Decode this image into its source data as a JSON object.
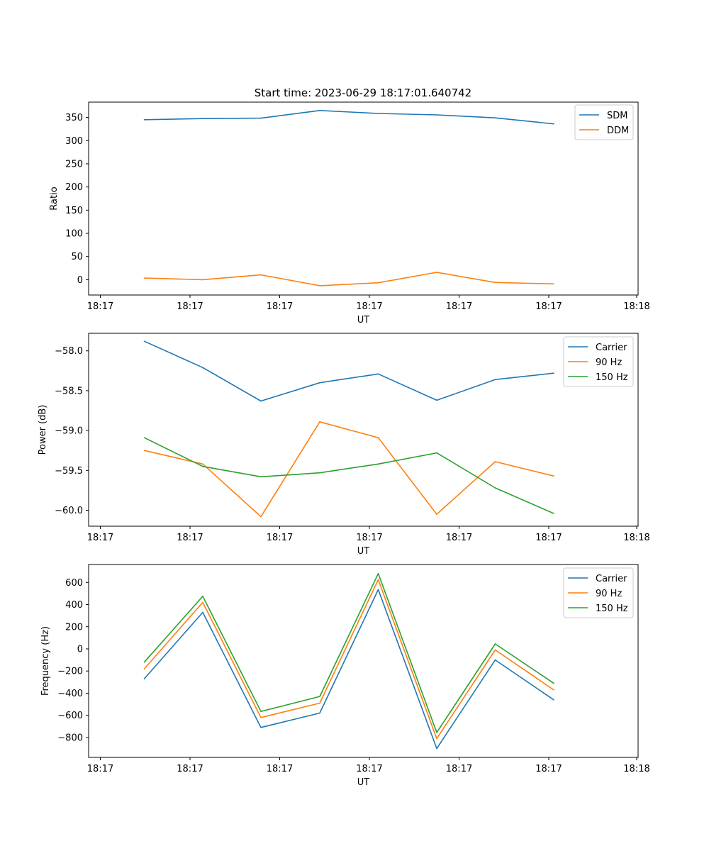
{
  "figure_title": "Start time: 2023-06-29 18:17:01.640742",
  "colors": {
    "blue": "#1f77b4",
    "orange": "#ff7f0e",
    "green": "#2ca02c"
  },
  "chart_data": [
    {
      "type": "line",
      "title": "Start time: 2023-06-29 18:17:01.640742",
      "xlabel": "UT",
      "ylabel": "Ratio",
      "x_ticks": [
        "18:17",
        "18:17",
        "18:17",
        "18:17",
        "18:17",
        "18:17",
        "18:18"
      ],
      "ylim": [
        -33,
        383
      ],
      "y_ticks": [
        0,
        50,
        100,
        150,
        200,
        250,
        300,
        350
      ],
      "legend": "top-right",
      "grid": false,
      "x_points": [
        1,
        2,
        3,
        4,
        5,
        6,
        7,
        8
      ],
      "series": [
        {
          "name": "SDM",
          "color": "#1f77b4",
          "values": [
            345,
            347.5,
            348.5,
            365,
            358.5,
            355.5,
            349,
            336
          ]
        },
        {
          "name": "DDM",
          "color": "#ff7f0e",
          "values": [
            3.5,
            0,
            10.5,
            -13,
            -6.5,
            16,
            -6,
            -9
          ]
        }
      ]
    },
    {
      "type": "line",
      "xlabel": "UT",
      "ylabel": "Power (dB)",
      "x_ticks": [
        "18:17",
        "18:17",
        "18:17",
        "18:17",
        "18:17",
        "18:17",
        "18:18"
      ],
      "ylim": [
        -60.2,
        -57.78
      ],
      "y_ticks": [
        -60.0,
        -59.5,
        -59.0,
        -58.5,
        -58.0
      ],
      "legend": "top-right",
      "grid": false,
      "x_points": [
        1,
        2,
        3,
        4,
        5,
        6,
        7,
        8
      ],
      "series": [
        {
          "name": "Carrier",
          "color": "#1f77b4",
          "values": [
            -57.88,
            -58.21,
            -58.63,
            -58.4,
            -58.29,
            -58.62,
            -58.36,
            -58.28
          ]
        },
        {
          "name": "90 Hz",
          "color": "#ff7f0e",
          "values": [
            -59.25,
            -59.42,
            -60.08,
            -58.89,
            -59.09,
            -60.05,
            -59.39,
            -59.57
          ]
        },
        {
          "name": "150 Hz",
          "color": "#2ca02c",
          "values": [
            -59.09,
            -59.45,
            -59.58,
            -59.53,
            -59.42,
            -59.28,
            -59.72,
            -60.04
          ]
        }
      ]
    },
    {
      "type": "line",
      "xlabel": "UT",
      "ylabel": "Frequency (Hz)",
      "x_ticks": [
        "18:17",
        "18:17",
        "18:17",
        "18:17",
        "18:17",
        "18:17",
        "18:18"
      ],
      "ylim": [
        -980,
        762
      ],
      "y_ticks": [
        -800,
        -600,
        -400,
        -200,
        0,
        200,
        400,
        600
      ],
      "legend": "top-right",
      "grid": false,
      "x_points": [
        1,
        2,
        3,
        4,
        5,
        6,
        7,
        8
      ],
      "series": [
        {
          "name": "Carrier",
          "color": "#1f77b4",
          "values": [
            -270,
            330,
            -710,
            -580,
            535,
            -900,
            -100,
            -460
          ]
        },
        {
          "name": "90 Hz",
          "color": "#ff7f0e",
          "values": [
            -180,
            420,
            -620,
            -490,
            625,
            -810,
            -10,
            -370
          ]
        },
        {
          "name": "150 Hz",
          "color": "#2ca02c",
          "values": [
            -120,
            475,
            -565,
            -430,
            680,
            -755,
            45,
            -310
          ]
        }
      ]
    }
  ]
}
